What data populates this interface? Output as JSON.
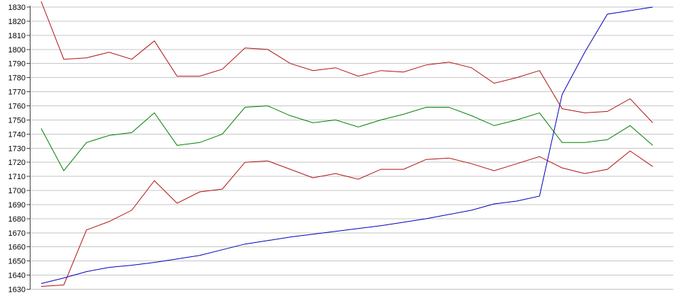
{
  "chart_data": {
    "type": "line",
    "title": "",
    "xlabel": "",
    "ylabel": "",
    "legend": "none",
    "grid": "horizontal",
    "background_color": "#ffffff",
    "gridline_color": "#c6c6c6",
    "axis_color": "#404040",
    "y_axis": {
      "min": 1630,
      "max": 1830,
      "tick_step": 10,
      "ticks": [
        1830,
        1820,
        1810,
        1800,
        1790,
        1780,
        1770,
        1760,
        1750,
        1740,
        1730,
        1720,
        1710,
        1700,
        1690,
        1680,
        1670,
        1660,
        1650,
        1640,
        1630
      ]
    },
    "x_axis": {
      "labels_visible": false,
      "point_count": 28
    },
    "series": [
      {
        "id": "upper-red",
        "color": "#b01212",
        "values": [
          1834,
          1793,
          1794,
          1798,
          1793,
          1806,
          1781,
          1781,
          1786,
          1801,
          1800,
          1790,
          1785,
          1787,
          1781,
          1785,
          1784,
          1789,
          1791,
          1787,
          1776,
          1780,
          1785,
          1758,
          1755,
          1756,
          1765,
          1748
        ]
      },
      {
        "id": "green",
        "color": "#008000",
        "values": [
          1744,
          1714,
          1734,
          1739,
          1741,
          1755,
          1732,
          1734,
          1740,
          1759,
          1760,
          1753,
          1748,
          1750,
          1745,
          1750,
          1754,
          1759,
          1759,
          1753,
          1746,
          1750,
          1755,
          1734,
          1734,
          1736,
          1746,
          1732
        ]
      },
      {
        "id": "lower-red",
        "color": "#b01212",
        "values": [
          1632,
          1633,
          1672,
          1678,
          1686,
          1707,
          1691,
          1699,
          1701,
          1720,
          1721,
          1715,
          1709,
          1712,
          1708,
          1715,
          1715,
          1722,
          1723,
          1719,
          1714,
          1719,
          1724,
          1716,
          1712,
          1715,
          1728,
          1717
        ]
      },
      {
        "id": "blue",
        "color": "#0000bb",
        "values": [
          1634,
          1638,
          1642.5,
          1645.5,
          1647,
          1649,
          1651.5,
          1654,
          1658,
          1662,
          1664.5,
          1667,
          1669,
          1671,
          1673,
          1675,
          1677.5,
          1680,
          1683,
          1686,
          1690.5,
          1692.5,
          1696,
          1768,
          1798,
          1825,
          1827.5,
          1830
        ]
      }
    ]
  }
}
